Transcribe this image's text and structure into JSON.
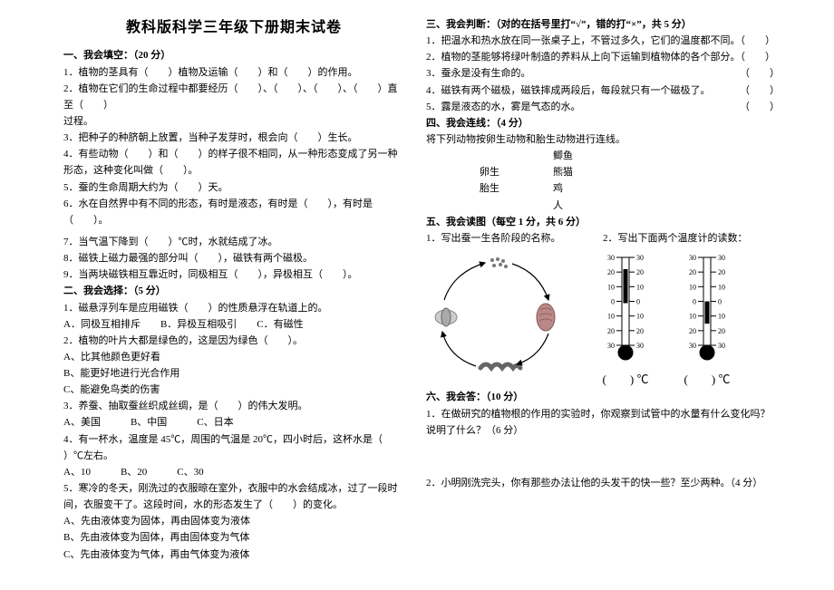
{
  "title": "教科版科学三年级下册期末试卷",
  "s1": {
    "head": "一、我会填空：（20 分）",
    "q1": "1．植物的茎具有（　　）植物及运输（　　）和（　　）的作用。",
    "q2a": "2．植物在它们的生命过程中都要经历（　　）、（　　）、（　　）、（　　）直至（　　）",
    "q2b": "过程。",
    "q3": "3．把种子的种脐朝上放置，当种子发芽时，根会向（　　）生长。",
    "q4a": "4．有些动物（　　）和（　　）的样子很不相同，从一种形态变成了另一种",
    "q4b": "形态，这种变化叫做（　　）。",
    "q5": "5．蚕的生命周期大约为（　　）天。",
    "q6": "6．水在自然界中有不同的形态，有时是液态，有时是（　　），有时是（　　）。",
    "q7": "7．当气温下降到（　　）℃时，水就结成了冰。",
    "q8": "8．磁铁上磁力最强的部分叫（　　），磁铁有两个磁极。",
    "q9": "9．当两块磁铁相互靠近时，同极相互（　　），异极相互（　　）。"
  },
  "s2": {
    "head": "二、我会选择：（5 分）",
    "q1": "1．磁悬浮列车是应用磁铁（　　）的性质悬浮在轨道上的。",
    "q1o": "A．同极互相排斥　　B．异极互相吸引　　C．有磁性",
    "q2": "2．植物的叶片大都是绿色的，这是因为绿色（　　）。",
    "q2a": "A、比其他颜色更好看",
    "q2b": "B、能更好地进行光合作用",
    "q2c": "C、能避免鸟类的伤害",
    "q3": "3．养蚕、抽取蚕丝织成丝绸，是（　　）的伟大发明。",
    "q3o": "A、美国　　　B、中国　　　C、日本",
    "q4a": "4．有一杯水，温度是 45℃，周围的气温是 20℃，四小时后，这杯水是（　",
    "q4b": "）℃左右。",
    "q4o": "A、10　　　B、20　　　C、30",
    "q5a": "5．寒冷的冬天，刚洗过的衣服晾在室外，衣服中的水会结成冰，过了一段时",
    "q5b": "间，衣服变干了。这段时间，水的形态发生了（　　）的变化。",
    "q5oa": "A、先由液体变为固体，再由固体变为液体",
    "q5ob": "B、先由液体变为固体，再由固体变为气体",
    "q5oc": "C、先由液体变为气体，再由气体变为液体"
  },
  "s3": {
    "head": "三、我会判断：（对的在括号里打“√”，错的打“×”，共 5 分）",
    "q1": "1．把温水和热水放在同一张桌子上，不管过多久，它们的温度都不同。（　　）",
    "q2": "2．植物的茎能够将绿叶制造的养料从上向下运输到植物体的各个部分。（　　）",
    "q3": "3．蚕永是没有生命的。",
    "p3": "（　　）",
    "q4": "4．磁铁有两个磁极，磁铁摔成两段后，每段就只有一个磁极了。",
    "p4": "（　　）",
    "q5": "5．露是液态的水，雾是气态的水。",
    "p5": "（　　）"
  },
  "s4": {
    "head": "四、我会连线：（4 分）",
    "intro": "将下列动物按卵生动物和胎生动物进行连线。",
    "r1a": "",
    "r1b": "鲫鱼",
    "r2a": "卵生",
    "r2b": "熊猫",
    "r3a": "胎生",
    "r3b": "鸡",
    "r4a": "",
    "r4b": "人"
  },
  "s5": {
    "head": "五、我会读图（每空 1 分，共 6 分）",
    "q1": "1．写出蚕一生各阶段的名称。",
    "q2": "2．写出下面两个温度计的读数：",
    "deg1": "(　　) ℃",
    "deg2": "(　　) ℃",
    "therm1": {
      "ticks": [
        30,
        20,
        10,
        0,
        10,
        20,
        30
      ],
      "fill_from": 0,
      "fill_to": 22,
      "bulb": "#000"
    },
    "therm2": {
      "ticks": [
        30,
        20,
        10,
        0,
        10,
        20,
        30
      ],
      "fill_from": -14,
      "fill_to": 0,
      "bulb": "#000"
    }
  },
  "s6": {
    "head": "六、我会答：（10 分）",
    "q1a": "1．在做研究的植物根的作用的实验时，你观察到试管中的水量有什么变化吗？",
    "q1b": "说明了什么？（6 分）",
    "q2": "2．小明刚洗完头，你有那些办法让他的头发干的快一些？至少两种。（4 分）"
  }
}
